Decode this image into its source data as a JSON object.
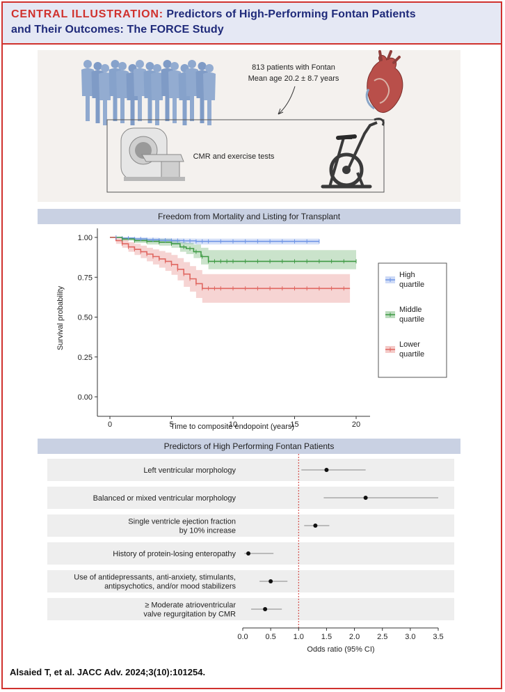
{
  "header": {
    "title_prefix": "CENTRAL ILLUSTRATION:",
    "title_rest": " Predictors of High-Performing Fontan Patients",
    "title_line2": "and Their Outcomes: The FORCE Study"
  },
  "top_panel": {
    "patients_line1": "813 patients with Fontan",
    "patients_line2": "Mean age 20.2 ± 8.7 years",
    "tests_label": "CMR and exercise tests"
  },
  "citation": "Alsaied T, et al. JACC Adv. 2024;3(10):101254.",
  "colors": {
    "high": "#6f95e6",
    "middle": "#3f9a45",
    "lower": "#e06660",
    "accent_red": "#d0312d",
    "navy": "#1f2a7a"
  },
  "chart_data": [
    {
      "type": "line",
      "title": "Freedom from Mortality and Listing for Transplant",
      "xlabel": "Time to composite endopoint (years)",
      "ylabel": "Survival probability",
      "xlim": [
        0,
        20
      ],
      "ylim": [
        0,
        1
      ],
      "xticks": [
        "0",
        "5",
        "10",
        "15",
        "20"
      ],
      "yticks": [
        "0.00",
        "0.25",
        "0.50",
        "0.75",
        "1.00"
      ],
      "legend_position": "right",
      "series": [
        {
          "name": "High quartile",
          "legend_line1": "High",
          "legend_line2": "quartile",
          "color": "#6f95e6",
          "x": [
            0,
            1,
            2,
            3,
            4,
            5,
            6,
            7,
            8,
            12,
            17
          ],
          "y": [
            1.0,
            0.995,
            0.99,
            0.985,
            0.982,
            0.98,
            0.978,
            0.975,
            0.975,
            0.975,
            0.975
          ],
          "lower_ci": [
            1.0,
            0.99,
            0.98,
            0.972,
            0.968,
            0.962,
            0.958,
            0.955,
            0.955,
            0.955,
            0.955
          ],
          "upper_ci": [
            1.0,
            1.0,
            1.0,
            0.998,
            0.996,
            0.994,
            0.993,
            0.992,
            0.992,
            0.992,
            0.992
          ],
          "censor_x": [
            0.5,
            1,
            1.5,
            2,
            2.5,
            3,
            3.5,
            4,
            4.5,
            5,
            5.5,
            6,
            6.5,
            7,
            7.5,
            8,
            9,
            10,
            11,
            12,
            13,
            14,
            15,
            16,
            17
          ]
        },
        {
          "name": "Middle quartile",
          "legend_line1": "Middle",
          "legend_line2": "quartile",
          "color": "#3f9a45",
          "x": [
            0,
            1,
            2,
            3,
            4,
            5,
            5.7,
            6.2,
            6.8,
            7.4,
            8,
            12,
            20
          ],
          "y": [
            1.0,
            0.99,
            0.98,
            0.975,
            0.97,
            0.96,
            0.94,
            0.93,
            0.91,
            0.88,
            0.85,
            0.85,
            0.85
          ],
          "lower_ci": [
            1.0,
            0.98,
            0.965,
            0.955,
            0.948,
            0.935,
            0.91,
            0.895,
            0.87,
            0.83,
            0.8,
            0.8,
            0.8
          ],
          "upper_ci": [
            1.0,
            1.0,
            0.995,
            0.99,
            0.99,
            0.985,
            0.97,
            0.965,
            0.955,
            0.935,
            0.92,
            0.92,
            0.92
          ],
          "censor_x": [
            1,
            2,
            3,
            4,
            5,
            6,
            6.5,
            7,
            7.5,
            8,
            8.5,
            9,
            9.5,
            10,
            11,
            12,
            13,
            14,
            15,
            16,
            17,
            18,
            19,
            20
          ]
        },
        {
          "name": "Lower quartile",
          "legend_line1": "Lower",
          "legend_line2": "quartile",
          "color": "#e06660",
          "x": [
            0,
            0.5,
            1,
            1.5,
            2,
            2.5,
            3,
            3.5,
            4,
            4.5,
            5,
            5.5,
            6,
            6.5,
            7,
            7.5,
            10,
            19.5
          ],
          "y": [
            1.0,
            0.98,
            0.96,
            0.94,
            0.925,
            0.91,
            0.895,
            0.88,
            0.865,
            0.85,
            0.83,
            0.8,
            0.77,
            0.74,
            0.71,
            0.68,
            0.68,
            0.68
          ],
          "lower_ci": [
            1.0,
            0.96,
            0.935,
            0.91,
            0.89,
            0.87,
            0.85,
            0.83,
            0.81,
            0.79,
            0.765,
            0.73,
            0.69,
            0.66,
            0.62,
            0.59,
            0.59,
            0.59
          ],
          "upper_ci": [
            1.0,
            0.995,
            0.985,
            0.97,
            0.96,
            0.948,
            0.935,
            0.925,
            0.915,
            0.905,
            0.89,
            0.87,
            0.845,
            0.82,
            0.795,
            0.77,
            0.77,
            0.77
          ],
          "censor_x": [
            1,
            1.5,
            2,
            2.5,
            3,
            3.5,
            4,
            4.5,
            5,
            5.5,
            6,
            6.5,
            7,
            7.5,
            8,
            8.5,
            9,
            10,
            11,
            12,
            13,
            14,
            15,
            16,
            17,
            18,
            19
          ]
        }
      ]
    },
    {
      "type": "scatter",
      "subtype": "forest",
      "title": "Predictors of High Performing Fontan Patients",
      "xlabel": "Odds ratio (95% CI)",
      "xlim": [
        0,
        3.5
      ],
      "xticks": [
        "0.0",
        "0.5",
        "1.0",
        "1.5",
        "2.0",
        "2.5",
        "3.0",
        "3.5"
      ],
      "reference_line": 1.0,
      "rows": [
        {
          "label_lines": [
            "Left ventricular morphology"
          ],
          "or": 1.5,
          "ci_low": 1.05,
          "ci_high": 2.2
        },
        {
          "label_lines": [
            "Balanced or mixed ventricular morphology"
          ],
          "or": 2.2,
          "ci_low": 1.45,
          "ci_high": 3.5
        },
        {
          "label_lines": [
            "Single ventricle ejection fraction",
            "by 10% increase"
          ],
          "or": 1.3,
          "ci_low": 1.1,
          "ci_high": 1.55
        },
        {
          "label_lines": [
            "History of protein-losing enteropathy"
          ],
          "or": 0.1,
          "ci_low": 0.03,
          "ci_high": 0.55
        },
        {
          "label_lines": [
            "Use of antidepressants, anti-anxiety, stimulants,",
            "antipsychotics, and/or mood stabilizers"
          ],
          "or": 0.5,
          "ci_low": 0.3,
          "ci_high": 0.8
        },
        {
          "label_lines": [
            "≥ Moderate atrioventricular",
            "valve regurgitation by CMR"
          ],
          "or": 0.4,
          "ci_low": 0.15,
          "ci_high": 0.7
        }
      ]
    }
  ]
}
